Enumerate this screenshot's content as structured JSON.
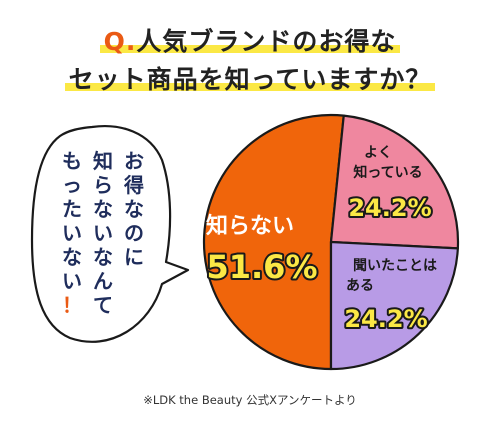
{
  "title": {
    "prefix": "Q.",
    "line1": "人気ブランドのお得な",
    "line2": "セット商品を知っていますか？"
  },
  "bubble": {
    "lines": [
      "お得なのに",
      "知らないなんて",
      "もったいない！"
    ]
  },
  "chart_data": {
    "type": "pie",
    "slices": [
      {
        "label": "知らない",
        "value": 51.6,
        "display": "51.6%",
        "color": "#f0650b"
      },
      {
        "label": "よく知っている",
        "label_lines": [
          "よく",
          "知っている"
        ],
        "value": 24.2,
        "display": "24.2%",
        "color": "#ef879f"
      },
      {
        "label": "聞いたことはある",
        "label_lines": [
          "聞いたことは",
          "ある"
        ],
        "value": 24.2,
        "display": "24.2%",
        "color": "#b89be6"
      }
    ],
    "value_color": "#fbe845",
    "outline_color": "#1a1a1a"
  },
  "footnote": "※LDK the Beauty 公式Xアンケートより"
}
